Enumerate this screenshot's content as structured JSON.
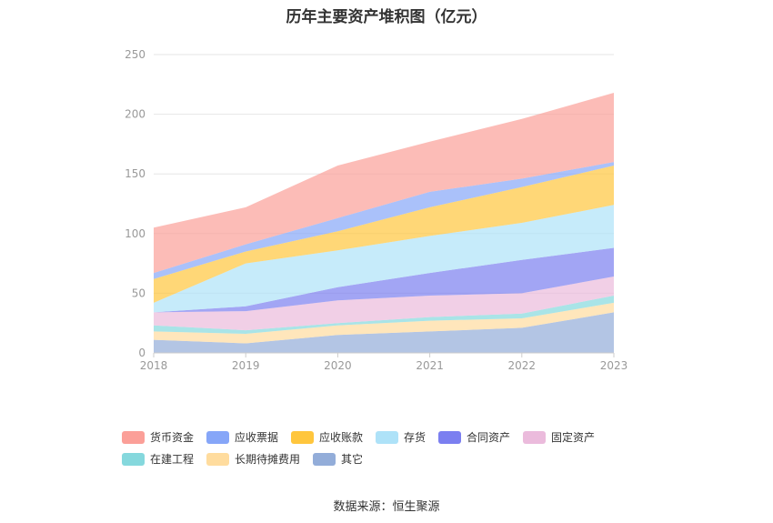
{
  "title": "历年主要资产堆积图（亿元）",
  "source": "数据来源：恒生聚源",
  "chart_data": {
    "type": "area",
    "stacked": true,
    "title": "历年主要资产堆积图（亿元）",
    "xlabel": "",
    "ylabel": "",
    "categories": [
      "2018",
      "2019",
      "2020",
      "2021",
      "2022",
      "2023"
    ],
    "ylim": [
      0,
      250
    ],
    "yticks": [
      0,
      50,
      100,
      150,
      200,
      250
    ],
    "grid": true,
    "legend_position": "bottom",
    "series": [
      {
        "name": "其它",
        "color": "#93add9",
        "values": [
          11,
          8,
          15,
          18,
          21,
          34
        ]
      },
      {
        "name": "长期待摊费用",
        "color": "#ffdc9e",
        "values": [
          7,
          8,
          8,
          9,
          8,
          8
        ]
      },
      {
        "name": "在建工程",
        "color": "#85d8dd",
        "values": [
          5,
          3,
          2,
          3,
          4,
          6
        ]
      },
      {
        "name": "固定资产",
        "color": "#ebbbdc",
        "values": [
          11,
          16,
          19,
          18,
          17,
          16
        ]
      },
      {
        "name": "合同资产",
        "color": "#7b7ff0",
        "values": [
          0,
          4,
          11,
          19,
          28,
          24
        ]
      },
      {
        "name": "存货",
        "color": "#aee2f8",
        "values": [
          8,
          36,
          31,
          31,
          31,
          36
        ]
      },
      {
        "name": "应收账款",
        "color": "#ffc63d",
        "values": [
          20,
          10,
          16,
          24,
          30,
          33
        ]
      },
      {
        "name": "应收票据",
        "color": "#86a6f8",
        "values": [
          5,
          6,
          11,
          13,
          7,
          3
        ]
      },
      {
        "name": "货币资金",
        "color": "#fb9f98",
        "values": [
          38,
          31,
          44,
          42,
          50,
          58
        ]
      }
    ]
  }
}
